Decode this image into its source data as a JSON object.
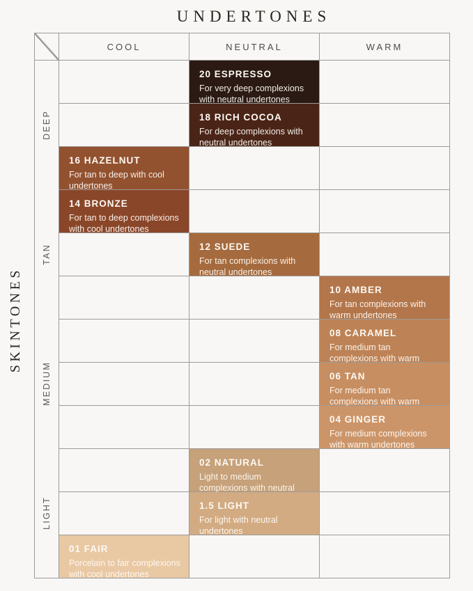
{
  "title": "UNDERTONES",
  "side_title": "SKINTONES",
  "columns": [
    "COOL",
    "NEUTRAL",
    "WARM"
  ],
  "row_groups": [
    "DEEP",
    "TAN",
    "MEDIUM",
    "LIGHT"
  ],
  "palette": {
    "background": "#f8f7f5",
    "grid_line": "#9d9b98",
    "title_text": "#2b2520",
    "header_text": "#4b4b4b",
    "group_text": "#5a5856",
    "cell_text": "#fdf9f4"
  },
  "chart_data": {
    "type": "table",
    "title": "UNDERTONES",
    "row_axis_label": "SKINTONES",
    "columns": [
      "COOL",
      "NEUTRAL",
      "WARM"
    ],
    "row_groups": [
      {
        "label": "DEEP",
        "rows": [
          0,
          1,
          2
        ]
      },
      {
        "label": "TAN",
        "rows": [
          3,
          4,
          5
        ]
      },
      {
        "label": "MEDIUM",
        "rows": [
          6,
          7,
          8
        ]
      },
      {
        "label": "LIGHT",
        "rows": [
          9,
          10,
          11
        ]
      }
    ],
    "rows": [
      {
        "column": "NEUTRAL",
        "col_index": 1,
        "name": "20 ESPRESSO",
        "description": "For very deep complexions with neutral undertones",
        "color": "#2b1a13"
      },
      {
        "column": "NEUTRAL",
        "col_index": 1,
        "name": "18 RICH COCOA",
        "description": "For deep complexions with neutral undertones",
        "color": "#4a2517"
      },
      {
        "column": "COOL",
        "col_index": 0,
        "name": "16 HAZELNUT",
        "description": "For tan to deep with cool undertones",
        "color": "#92512f"
      },
      {
        "column": "COOL",
        "col_index": 0,
        "name": "14 BRONZE",
        "description": "For tan to deep complexions with cool undertones",
        "color": "#8a4629"
      },
      {
        "column": "NEUTRAL",
        "col_index": 1,
        "name": "12 SUEDE",
        "description": "For tan complexions with neutral undertones",
        "color": "#a56a3d"
      },
      {
        "column": "WARM",
        "col_index": 2,
        "name": "10 AMBER",
        "description": "For tan complexions with warm undertones",
        "color": "#b3764b"
      },
      {
        "column": "WARM",
        "col_index": 2,
        "name": "08 CARAMEL",
        "description": "For medium tan complexions with warm undertones",
        "color": "#bd8356"
      },
      {
        "column": "WARM",
        "col_index": 2,
        "name": "06 TAN",
        "description": "For medium tan complexions with warm undertones",
        "color": "#c78e61"
      },
      {
        "column": "WARM",
        "col_index": 2,
        "name": "04 GINGER",
        "description": "For medium complexions with warm undertones",
        "color": "#cc9569"
      },
      {
        "column": "NEUTRAL",
        "col_index": 1,
        "name": "02 NATURAL",
        "description": "Light to medium complexions with neutral undertones",
        "color": "#c6a179"
      },
      {
        "column": "NEUTRAL",
        "col_index": 1,
        "name": "1.5 LIGHT",
        "description": "For light with neutral undertones",
        "color": "#d2ab82"
      },
      {
        "column": "COOL",
        "col_index": 0,
        "name": "01 FAIR",
        "description": "Porcelain to fair complexions with cool undertones",
        "color": "#e9c8a4"
      }
    ]
  }
}
